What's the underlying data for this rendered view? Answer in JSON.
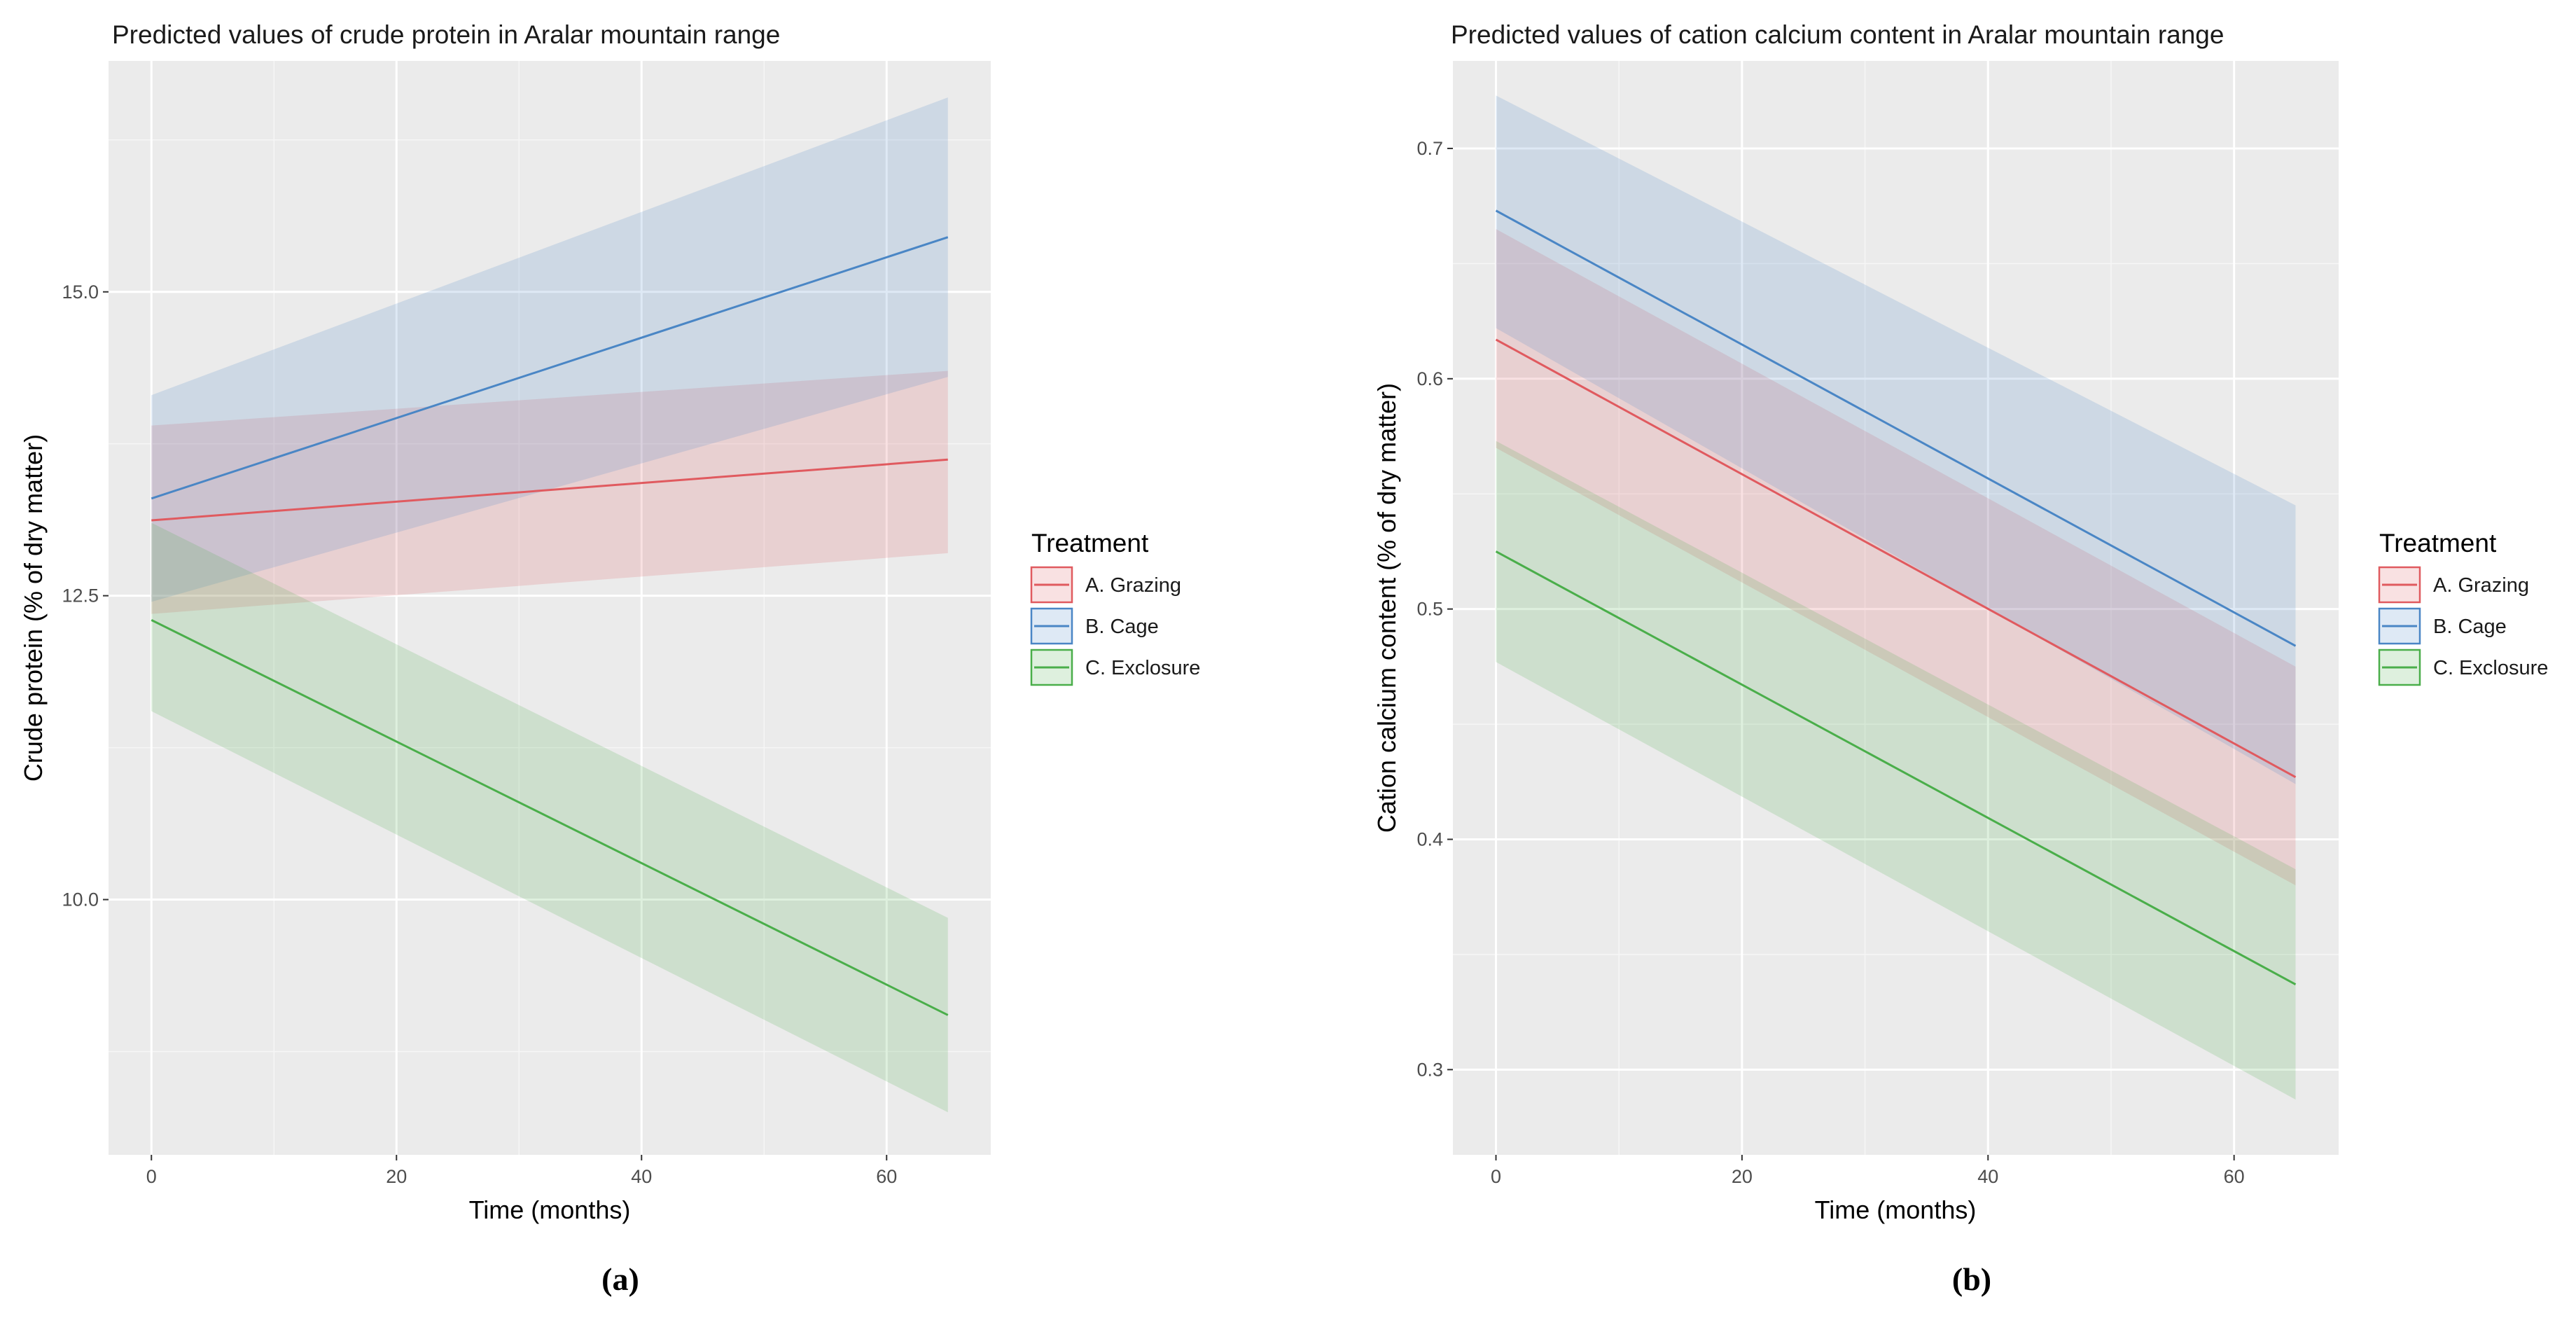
{
  "chart_data": [
    {
      "type": "line",
      "title": "Predicted values of crude protein in Aralar mountain range",
      "xlabel": "Time (months)",
      "ylabel": "Crude protein (% of dry matter)",
      "xlim": [
        -3.5,
        68.5
      ],
      "ylim": [
        7.9,
        16.9
      ],
      "xticks": [
        0,
        20,
        40,
        60
      ],
      "yticks": [
        10.0,
        12.5,
        15.0
      ],
      "ytick_labels": [
        "10.0",
        "12.5",
        "15.0"
      ],
      "legend_title": "Treatment",
      "caption": "(a)",
      "series": [
        {
          "name": "A. Grazing",
          "color": "#e05a5f",
          "x": [
            0,
            65
          ],
          "y": [
            13.12,
            13.62
          ],
          "lower": [
            12.35,
            12.85
          ],
          "upper": [
            13.9,
            14.35
          ]
        },
        {
          "name": "B. Cage",
          "color": "#4a86c5",
          "x": [
            0,
            65
          ],
          "y": [
            13.3,
            15.45
          ],
          "lower": [
            12.45,
            14.3
          ],
          "upper": [
            14.15,
            16.6
          ]
        },
        {
          "name": "C. Exclosure",
          "color": "#4aae4a",
          "x": [
            0,
            65
          ],
          "y": [
            12.3,
            9.05
          ],
          "lower": [
            11.55,
            8.25
          ],
          "upper": [
            13.1,
            9.85
          ]
        }
      ]
    },
    {
      "type": "line",
      "title": "Predicted values of cation calcium content in Aralar mountain range",
      "xlabel": "Time (months)",
      "ylabel": "Cation calcium content (% of dry matter)",
      "xlim": [
        -3.5,
        68.5
      ],
      "ylim": [
        0.263,
        0.738
      ],
      "xticks": [
        0,
        20,
        40,
        60
      ],
      "yticks": [
        0.3,
        0.4,
        0.5,
        0.6,
        0.7
      ],
      "ytick_labels": [
        "0.3",
        "0.4",
        "0.5",
        "0.6",
        "0.7"
      ],
      "legend_title": "Treatment",
      "caption": "(b)",
      "series": [
        {
          "name": "A. Grazing",
          "color": "#e05a5f",
          "x": [
            0,
            65
          ],
          "y": [
            0.617,
            0.427
          ],
          "lower": [
            0.57,
            0.38
          ],
          "upper": [
            0.665,
            0.475
          ]
        },
        {
          "name": "B. Cage",
          "color": "#4a86c5",
          "x": [
            0,
            65
          ],
          "y": [
            0.673,
            0.484
          ],
          "lower": [
            0.622,
            0.424
          ],
          "upper": [
            0.723,
            0.545
          ]
        },
        {
          "name": "C. Exclosure",
          "color": "#4aae4a",
          "x": [
            0,
            65
          ],
          "y": [
            0.525,
            0.337
          ],
          "lower": [
            0.477,
            0.287
          ],
          "upper": [
            0.573,
            0.387
          ]
        }
      ]
    }
  ]
}
